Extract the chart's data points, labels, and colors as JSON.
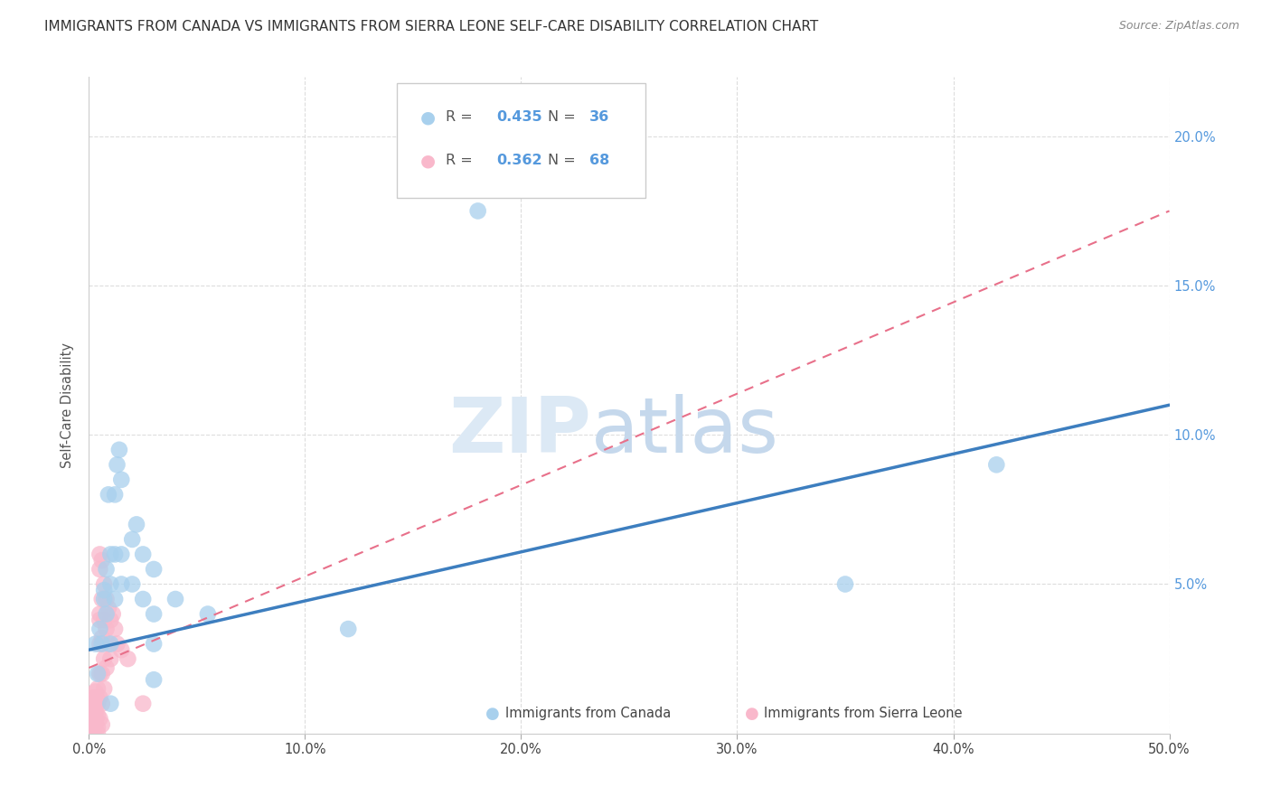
{
  "title": "IMMIGRANTS FROM CANADA VS IMMIGRANTS FROM SIERRA LEONE SELF-CARE DISABILITY CORRELATION CHART",
  "source": "Source: ZipAtlas.com",
  "ylabel": "Self-Care Disability",
  "xlabel_canada": "Immigrants from Canada",
  "xlabel_sierraleone": "Immigrants from Sierra Leone",
  "xlim": [
    0,
    0.5
  ],
  "ylim": [
    0,
    0.22
  ],
  "R_canada": 0.435,
  "N_canada": 36,
  "R_sierraleone": 0.362,
  "N_sierraleone": 68,
  "canada_color": "#a8d0ed",
  "sierraleone_color": "#f9b8cb",
  "canada_line_color": "#3d7ebf",
  "sierraleone_line_color": "#e8708a",
  "canada_points": [
    [
      0.003,
      0.03
    ],
    [
      0.004,
      0.02
    ],
    [
      0.005,
      0.035
    ],
    [
      0.006,
      0.03
    ],
    [
      0.007,
      0.045
    ],
    [
      0.007,
      0.048
    ],
    [
      0.008,
      0.055
    ],
    [
      0.008,
      0.04
    ],
    [
      0.009,
      0.08
    ],
    [
      0.01,
      0.06
    ],
    [
      0.01,
      0.05
    ],
    [
      0.01,
      0.03
    ],
    [
      0.01,
      0.01
    ],
    [
      0.012,
      0.08
    ],
    [
      0.012,
      0.06
    ],
    [
      0.012,
      0.045
    ],
    [
      0.013,
      0.09
    ],
    [
      0.014,
      0.095
    ],
    [
      0.015,
      0.085
    ],
    [
      0.015,
      0.06
    ],
    [
      0.015,
      0.05
    ],
    [
      0.02,
      0.065
    ],
    [
      0.02,
      0.05
    ],
    [
      0.022,
      0.07
    ],
    [
      0.025,
      0.06
    ],
    [
      0.025,
      0.045
    ],
    [
      0.03,
      0.055
    ],
    [
      0.03,
      0.04
    ],
    [
      0.03,
      0.03
    ],
    [
      0.03,
      0.018
    ],
    [
      0.04,
      0.045
    ],
    [
      0.055,
      0.04
    ],
    [
      0.12,
      0.035
    ],
    [
      0.18,
      0.175
    ],
    [
      0.35,
      0.05
    ],
    [
      0.42,
      0.09
    ]
  ],
  "sierraleone_points": [
    [
      0.0002,
      0.002
    ],
    [
      0.0003,
      0.005
    ],
    [
      0.0004,
      0.002
    ],
    [
      0.0005,
      0.003
    ],
    [
      0.0006,
      0.004
    ],
    [
      0.0007,
      0.0
    ],
    [
      0.0008,
      0.003
    ],
    [
      0.0009,
      0.005
    ],
    [
      0.001,
      0.002
    ],
    [
      0.001,
      0.004
    ],
    [
      0.001,
      0.007
    ],
    [
      0.001,
      0.0
    ],
    [
      0.0012,
      0.005
    ],
    [
      0.0012,
      0.003
    ],
    [
      0.0013,
      0.006
    ],
    [
      0.0015,
      0.008
    ],
    [
      0.0015,
      0.004
    ],
    [
      0.0015,
      0.002
    ],
    [
      0.002,
      0.01
    ],
    [
      0.002,
      0.007
    ],
    [
      0.002,
      0.005
    ],
    [
      0.002,
      0.003
    ],
    [
      0.002,
      0.0
    ],
    [
      0.0022,
      0.012
    ],
    [
      0.0025,
      0.01
    ],
    [
      0.0025,
      0.007
    ],
    [
      0.003,
      0.014
    ],
    [
      0.003,
      0.01
    ],
    [
      0.003,
      0.007
    ],
    [
      0.003,
      0.005
    ],
    [
      0.003,
      0.003
    ],
    [
      0.0035,
      0.012
    ],
    [
      0.004,
      0.015
    ],
    [
      0.004,
      0.01
    ],
    [
      0.004,
      0.006
    ],
    [
      0.004,
      0.002
    ],
    [
      0.004,
      0.0
    ],
    [
      0.005,
      0.06
    ],
    [
      0.005,
      0.055
    ],
    [
      0.005,
      0.04
    ],
    [
      0.005,
      0.038
    ],
    [
      0.005,
      0.03
    ],
    [
      0.005,
      0.02
    ],
    [
      0.005,
      0.012
    ],
    [
      0.005,
      0.005
    ],
    [
      0.006,
      0.058
    ],
    [
      0.006,
      0.045
    ],
    [
      0.006,
      0.032
    ],
    [
      0.006,
      0.02
    ],
    [
      0.006,
      0.01
    ],
    [
      0.006,
      0.003
    ],
    [
      0.007,
      0.05
    ],
    [
      0.007,
      0.038
    ],
    [
      0.007,
      0.025
    ],
    [
      0.007,
      0.015
    ],
    [
      0.008,
      0.045
    ],
    [
      0.008,
      0.035
    ],
    [
      0.008,
      0.022
    ],
    [
      0.009,
      0.042
    ],
    [
      0.009,
      0.03
    ],
    [
      0.01,
      0.038
    ],
    [
      0.01,
      0.025
    ],
    [
      0.011,
      0.04
    ],
    [
      0.012,
      0.035
    ],
    [
      0.013,
      0.03
    ],
    [
      0.015,
      0.028
    ],
    [
      0.018,
      0.025
    ],
    [
      0.025,
      0.01
    ]
  ],
  "background_color": "#ffffff",
  "grid_color": "#dddddd",
  "watermark_zip_color": "#dce9f5",
  "watermark_atlas_color": "#c5d8ec",
  "canada_trend": [
    0.0,
    0.028,
    0.5,
    0.11
  ],
  "sierraleone_trend": [
    0.0,
    0.022,
    0.5,
    0.175
  ]
}
